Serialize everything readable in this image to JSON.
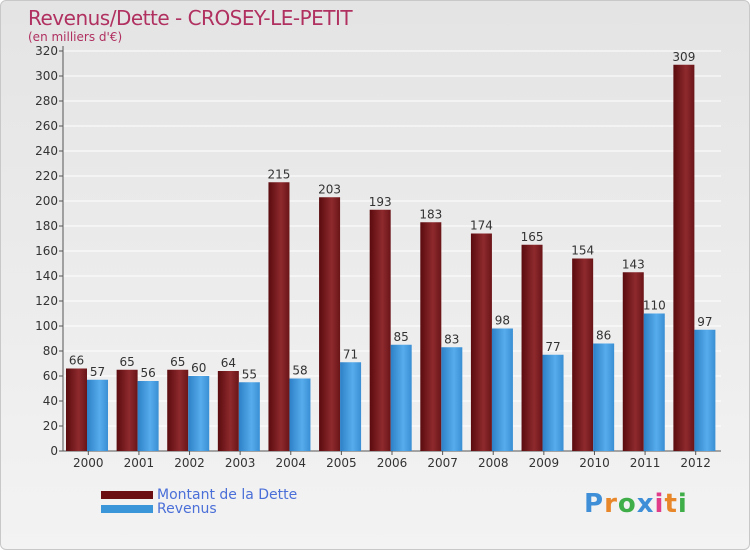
{
  "header": {
    "title": "Revenus/Dette - CROSEY-LE-PETIT",
    "subtitle": "(en milliers d'€)"
  },
  "chart_data": {
    "type": "bar",
    "title": "Revenus/Dette - CROSEY-LE-PETIT",
    "ylabel": "(en milliers d'€)",
    "xlabel": "",
    "ylim": [
      0,
      320
    ],
    "yticks": [
      0,
      20,
      40,
      60,
      80,
      100,
      120,
      140,
      160,
      180,
      200,
      220,
      240,
      260,
      280,
      300,
      320
    ],
    "grid": true,
    "categories": [
      "2000",
      "2001",
      "2002",
      "2003",
      "2004",
      "2005",
      "2006",
      "2007",
      "2008",
      "2009",
      "2010",
      "2011",
      "2012"
    ],
    "series": [
      {
        "name": "Montant de la Dette",
        "color": "#7a1a1e",
        "values": [
          66,
          65,
          65,
          64,
          215,
          203,
          193,
          183,
          174,
          165,
          154,
          143,
          309
        ]
      },
      {
        "name": "Revenus",
        "color": "#3b95d9",
        "values": [
          57,
          56,
          60,
          55,
          58,
          71,
          85,
          83,
          98,
          77,
          86,
          110,
          97
        ]
      }
    ],
    "legend_position": "bottom-left"
  },
  "legend": {
    "debt_label": "Montant de la Dette",
    "revenue_label": "Revenus",
    "debt_color": "#6b0f12",
    "revenue_color": "#3b95d9"
  },
  "logo": {
    "letters": [
      "P",
      "r",
      "o",
      "x",
      "i",
      "t",
      "i"
    ],
    "colors": [
      "#3f8fd8",
      "#e8862a",
      "#3fae49",
      "#3f8fd8",
      "#e03c8a",
      "#e8862a",
      "#3fae49"
    ]
  }
}
